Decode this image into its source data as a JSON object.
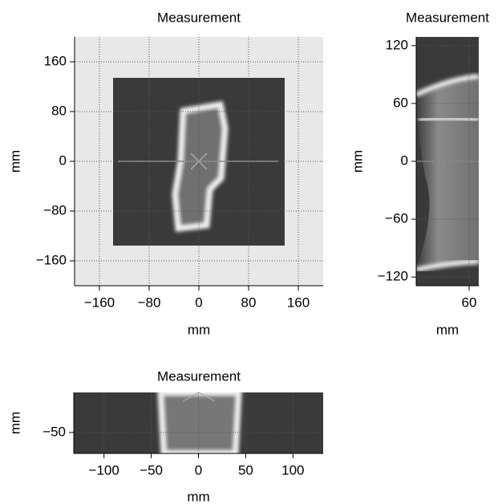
{
  "chart_data": [
    {
      "type": "image",
      "title": "Measurement",
      "xlabel": "mm",
      "ylabel": "mm",
      "xlim": [
        -200,
        200
      ],
      "ylim": [
        -200,
        200
      ],
      "grid": true,
      "xticks": [
        {
          "value": -160,
          "label": "−160"
        },
        {
          "value": -80,
          "label": "−80"
        },
        0,
        80,
        160
      ],
      "yticks": [
        {
          "value": -160,
          "label": "−160"
        },
        {
          "value": -80,
          "label": "−80"
        },
        0,
        80,
        160
      ]
    },
    {
      "type": "image",
      "title": "Measurement",
      "xlabel": "mm",
      "ylabel": "mm",
      "xlim": [
        5,
        70
      ],
      "ylim": [
        -129,
        129
      ],
      "grid": true,
      "xticks": [
        60
      ],
      "yticks": [
        {
          "value": -120,
          "label": "−120"
        },
        {
          "value": -60,
          "label": "−60"
        },
        0,
        60,
        120
      ]
    },
    {
      "type": "image",
      "title": "Measurement",
      "xlabel": "mm",
      "ylabel": "mm",
      "xlim": [
        -132,
        132
      ],
      "ylim": [
        -72,
        -8
      ],
      "grid": true,
      "xticks": [
        {
          "value": -100,
          "label": "−100"
        },
        {
          "value": -50,
          "label": "−50"
        },
        0,
        50,
        100
      ],
      "yticks": [
        {
          "value": -50,
          "label": "−50"
        }
      ]
    }
  ]
}
